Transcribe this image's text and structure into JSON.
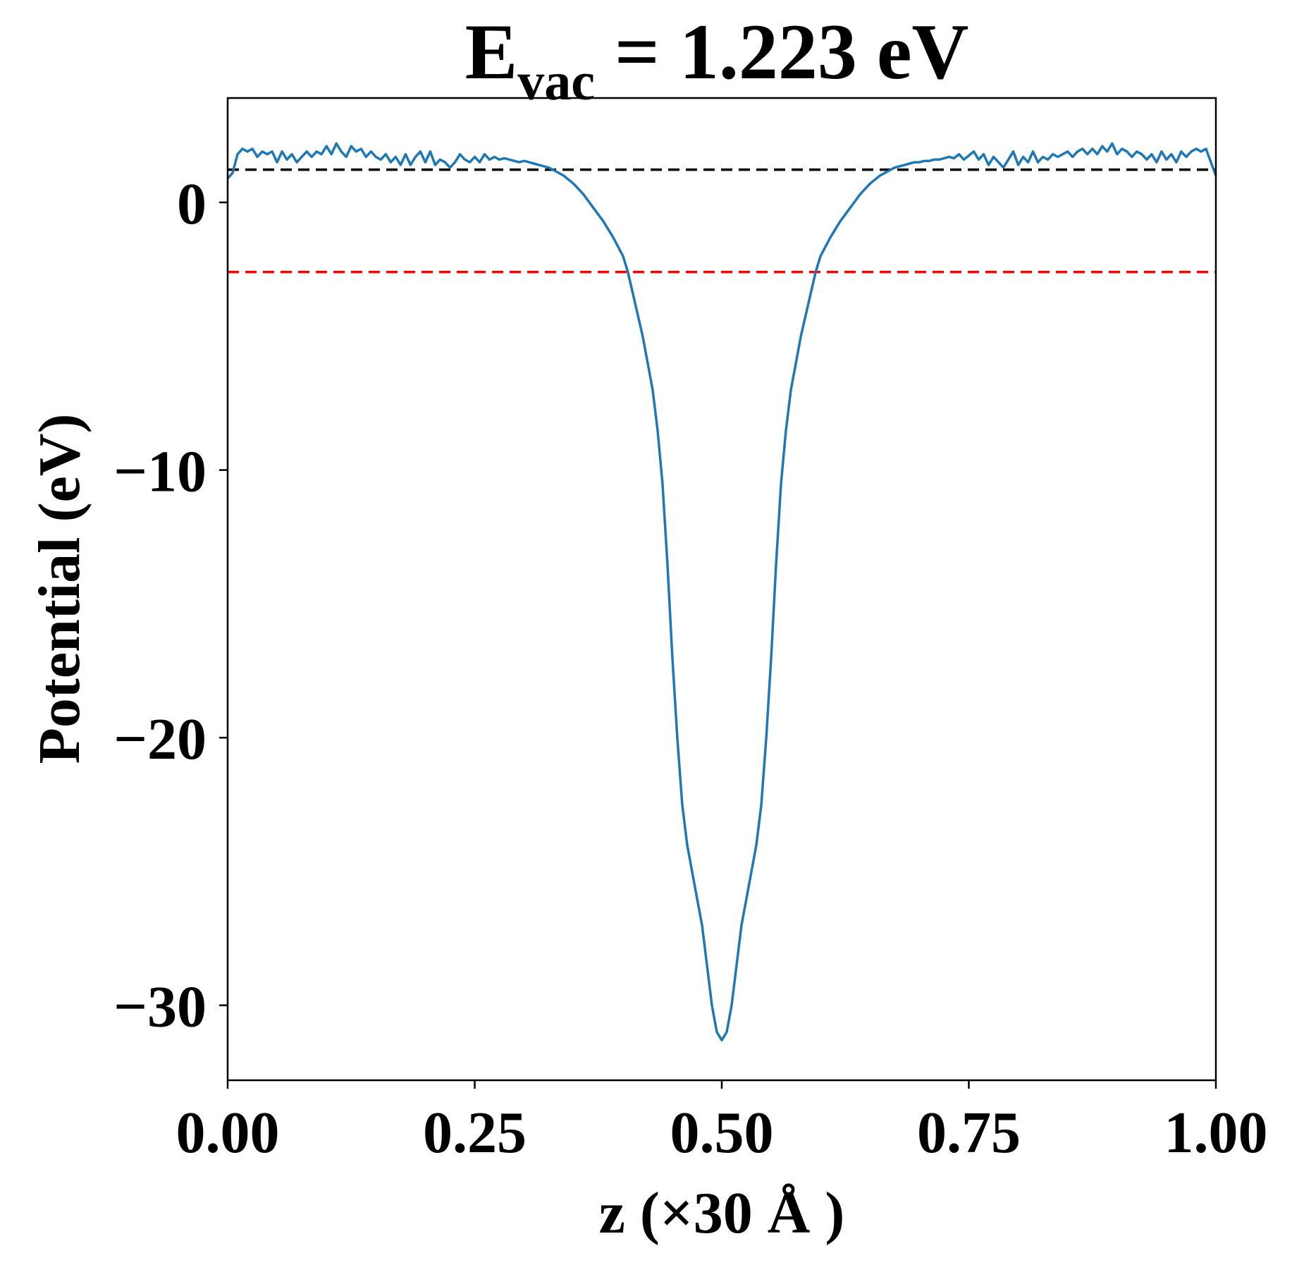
{
  "chart_data": {
    "type": "line",
    "title": {
      "main": "E",
      "subscript": "vac",
      "rest": " = 1.223 eV"
    },
    "xlabel": "z (×30 Å )",
    "ylabel": "Potential (eV)",
    "xlim": [
      0.0,
      1.0
    ],
    "ylim": [
      -32.8,
      3.9
    ],
    "x_ticks": [
      0.0,
      0.25,
      0.5,
      0.75,
      1.0
    ],
    "x_tick_labels": [
      "0.00",
      "0.25",
      "0.50",
      "0.75",
      "1.00"
    ],
    "y_ticks": [
      0,
      -10,
      -20,
      -30
    ],
    "y_tick_labels": [
      "0",
      "−10",
      "−20",
      "−30"
    ],
    "grid": false,
    "legend": "none",
    "reference_lines": [
      {
        "y": 1.223,
        "color": "#000000",
        "style": "dashed"
      },
      {
        "y": -2.6,
        "color": "#ff0000",
        "style": "dashed"
      }
    ],
    "series": [
      {
        "color": "#1f77b4",
        "points": [
          [
            0.0,
            0.9
          ],
          [
            0.005,
            1.1
          ],
          [
            0.01,
            1.8
          ],
          [
            0.015,
            2.0
          ],
          [
            0.02,
            1.9
          ],
          [
            0.025,
            2.0
          ],
          [
            0.03,
            1.7
          ],
          [
            0.035,
            1.9
          ],
          [
            0.04,
            1.8
          ],
          [
            0.045,
            1.9
          ],
          [
            0.05,
            1.5
          ],
          [
            0.055,
            1.9
          ],
          [
            0.06,
            1.6
          ],
          [
            0.065,
            1.8
          ],
          [
            0.07,
            1.5
          ],
          [
            0.075,
            1.7
          ],
          [
            0.08,
            1.9
          ],
          [
            0.085,
            1.7
          ],
          [
            0.09,
            1.9
          ],
          [
            0.095,
            1.8
          ],
          [
            0.1,
            2.1
          ],
          [
            0.105,
            1.8
          ],
          [
            0.11,
            2.2
          ],
          [
            0.115,
            1.9
          ],
          [
            0.12,
            1.7
          ],
          [
            0.125,
            2.1
          ],
          [
            0.13,
            1.9
          ],
          [
            0.135,
            2.0
          ],
          [
            0.14,
            1.7
          ],
          [
            0.145,
            1.9
          ],
          [
            0.15,
            1.7
          ],
          [
            0.155,
            1.6
          ],
          [
            0.16,
            1.8
          ],
          [
            0.165,
            1.5
          ],
          [
            0.17,
            1.7
          ],
          [
            0.175,
            1.4
          ],
          [
            0.18,
            1.8
          ],
          [
            0.185,
            1.4
          ],
          [
            0.19,
            1.7
          ],
          [
            0.195,
            1.9
          ],
          [
            0.2,
            1.5
          ],
          [
            0.205,
            1.9
          ],
          [
            0.21,
            1.4
          ],
          [
            0.215,
            1.6
          ],
          [
            0.22,
            1.5
          ],
          [
            0.225,
            1.3
          ],
          [
            0.23,
            1.5
          ],
          [
            0.235,
            1.8
          ],
          [
            0.24,
            1.6
          ],
          [
            0.245,
            1.5
          ],
          [
            0.25,
            1.7
          ],
          [
            0.255,
            1.5
          ],
          [
            0.26,
            1.8
          ],
          [
            0.265,
            1.6
          ],
          [
            0.27,
            1.7
          ],
          [
            0.275,
            1.6
          ],
          [
            0.28,
            1.65
          ],
          [
            0.285,
            1.6
          ],
          [
            0.29,
            1.55
          ],
          [
            0.295,
            1.5
          ],
          [
            0.3,
            1.55
          ],
          [
            0.305,
            1.5
          ],
          [
            0.31,
            1.45
          ],
          [
            0.315,
            1.4
          ],
          [
            0.32,
            1.35
          ],
          [
            0.325,
            1.3
          ],
          [
            0.33,
            1.2
          ],
          [
            0.34,
            1.0
          ],
          [
            0.35,
            0.7
          ],
          [
            0.36,
            0.3
          ],
          [
            0.37,
            -0.2
          ],
          [
            0.38,
            -0.7
          ],
          [
            0.39,
            -1.3
          ],
          [
            0.4,
            -2.0
          ],
          [
            0.405,
            -2.6
          ],
          [
            0.41,
            -3.4
          ],
          [
            0.415,
            -4.2
          ],
          [
            0.42,
            -5.0
          ],
          [
            0.425,
            -6.0
          ],
          [
            0.43,
            -7.0
          ],
          [
            0.435,
            -8.5
          ],
          [
            0.44,
            -10.5
          ],
          [
            0.445,
            -13.5
          ],
          [
            0.45,
            -17.0
          ],
          [
            0.455,
            -20.0
          ],
          [
            0.46,
            -22.5
          ],
          [
            0.465,
            -24.0
          ],
          [
            0.47,
            -25.0
          ],
          [
            0.475,
            -26.0
          ],
          [
            0.48,
            -27.0
          ],
          [
            0.485,
            -28.5
          ],
          [
            0.49,
            -30.0
          ],
          [
            0.495,
            -31.0
          ],
          [
            0.5,
            -31.3
          ],
          [
            0.505,
            -31.0
          ],
          [
            0.51,
            -30.0
          ],
          [
            0.515,
            -28.5
          ],
          [
            0.52,
            -27.0
          ],
          [
            0.525,
            -26.0
          ],
          [
            0.53,
            -25.0
          ],
          [
            0.535,
            -24.0
          ],
          [
            0.54,
            -22.5
          ],
          [
            0.545,
            -20.0
          ],
          [
            0.55,
            -17.0
          ],
          [
            0.555,
            -13.5
          ],
          [
            0.56,
            -10.5
          ],
          [
            0.565,
            -8.5
          ],
          [
            0.57,
            -7.0
          ],
          [
            0.575,
            -6.0
          ],
          [
            0.58,
            -5.0
          ],
          [
            0.585,
            -4.2
          ],
          [
            0.59,
            -3.4
          ],
          [
            0.595,
            -2.6
          ],
          [
            0.6,
            -2.0
          ],
          [
            0.61,
            -1.3
          ],
          [
            0.62,
            -0.7
          ],
          [
            0.63,
            -0.2
          ],
          [
            0.64,
            0.3
          ],
          [
            0.65,
            0.7
          ],
          [
            0.66,
            1.0
          ],
          [
            0.67,
            1.2
          ],
          [
            0.675,
            1.3
          ],
          [
            0.68,
            1.35
          ],
          [
            0.685,
            1.4
          ],
          [
            0.69,
            1.45
          ],
          [
            0.695,
            1.5
          ],
          [
            0.7,
            1.5
          ],
          [
            0.705,
            1.55
          ],
          [
            0.71,
            1.55
          ],
          [
            0.715,
            1.6
          ],
          [
            0.72,
            1.6
          ],
          [
            0.725,
            1.65
          ],
          [
            0.73,
            1.7
          ],
          [
            0.735,
            1.65
          ],
          [
            0.74,
            1.8
          ],
          [
            0.745,
            1.6
          ],
          [
            0.75,
            1.75
          ],
          [
            0.755,
            1.9
          ],
          [
            0.76,
            1.6
          ],
          [
            0.765,
            1.8
          ],
          [
            0.77,
            1.4
          ],
          [
            0.775,
            1.7
          ],
          [
            0.78,
            1.5
          ],
          [
            0.785,
            1.3
          ],
          [
            0.79,
            1.6
          ],
          [
            0.795,
            1.9
          ],
          [
            0.8,
            1.4
          ],
          [
            0.805,
            1.7
          ],
          [
            0.81,
            1.5
          ],
          [
            0.815,
            1.9
          ],
          [
            0.82,
            1.5
          ],
          [
            0.825,
            1.7
          ],
          [
            0.83,
            1.6
          ],
          [
            0.835,
            1.8
          ],
          [
            0.84,
            1.7
          ],
          [
            0.845,
            1.8
          ],
          [
            0.85,
            1.9
          ],
          [
            0.855,
            1.7
          ],
          [
            0.86,
            1.9
          ],
          [
            0.865,
            2.0
          ],
          [
            0.87,
            1.8
          ],
          [
            0.875,
            2.0
          ],
          [
            0.88,
            1.8
          ],
          [
            0.885,
            2.1
          ],
          [
            0.89,
            1.9
          ],
          [
            0.895,
            2.2
          ],
          [
            0.9,
            1.8
          ],
          [
            0.905,
            2.0
          ],
          [
            0.91,
            1.9
          ],
          [
            0.915,
            1.7
          ],
          [
            0.92,
            1.9
          ],
          [
            0.925,
            1.8
          ],
          [
            0.93,
            1.6
          ],
          [
            0.935,
            1.8
          ],
          [
            0.94,
            1.5
          ],
          [
            0.945,
            1.9
          ],
          [
            0.95,
            1.6
          ],
          [
            0.955,
            1.8
          ],
          [
            0.96,
            1.5
          ],
          [
            0.965,
            1.9
          ],
          [
            0.97,
            1.7
          ],
          [
            0.975,
            1.9
          ],
          [
            0.98,
            2.0
          ],
          [
            0.985,
            1.9
          ],
          [
            0.99,
            2.0
          ],
          [
            0.995,
            1.5
          ],
          [
            1.0,
            1.0
          ]
        ]
      }
    ]
  }
}
